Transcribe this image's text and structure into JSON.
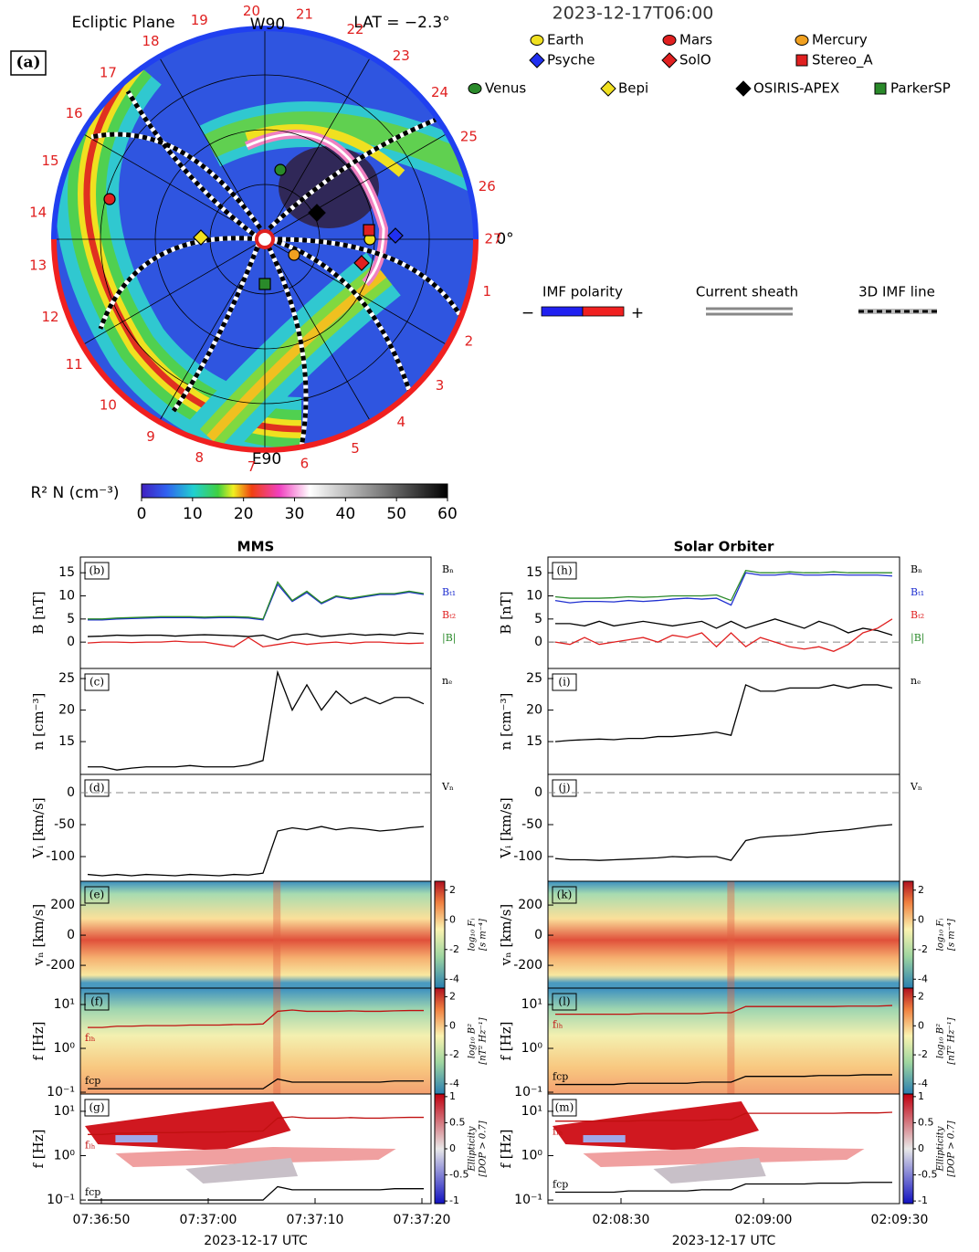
{
  "panel_a": {
    "label": "(a)",
    "title": "Ecliptic Plane",
    "lat": "LAT = −2.3°",
    "top": "W90",
    "bottom": "E90",
    "zero": "0°",
    "date": "2023-12-17T06:00",
    "sector_numbers": [
      "1",
      "2",
      "3",
      "4",
      "5",
      "6",
      "7",
      "8",
      "9",
      "10",
      "11",
      "12",
      "13",
      "14",
      "15",
      "16",
      "17",
      "18",
      "19",
      "20",
      "21",
      "22",
      "23",
      "24",
      "25",
      "26",
      "27"
    ],
    "legend": [
      "Earth",
      "Mars",
      "Mercury",
      "Psyche",
      "SolO",
      "Stereo_A",
      "Venus",
      "Bepi",
      "OSIRIS-APEX",
      "ParkerSP"
    ],
    "imf": {
      "polarity": "IMF polarity",
      "minus": "−",
      "plus": "+",
      "sheath": "Current sheath",
      "line": "3D IMF line"
    },
    "colorbar": {
      "label": "R² N (cm⁻³)",
      "clim": [
        0,
        60
      ],
      "ticks": [
        0,
        10,
        20,
        30,
        40,
        50,
        60
      ]
    }
  },
  "columns": [
    {
      "title": "MMS",
      "xlabel": "2023-12-17 UTC",
      "xticks": [
        "07:36:50",
        "07:37:00",
        "07:37:10",
        "07:37:20"
      ],
      "panels": [
        {
          "label": "(b)",
          "ylabel": "B [nT]",
          "ylim": [
            -5.7,
            18.4
          ],
          "yticks": [
            0,
            5,
            10,
            15
          ],
          "series": [
            {
              "name": "Bₙ",
              "color": "#000000",
              "values": [
                1.2,
                1.3,
                1.5,
                1.4,
                1.5,
                1.5,
                1.3,
                1.5,
                1.6,
                1.5,
                1.4,
                1.2,
                1.5,
                0.5,
                1.5,
                1.8,
                1.2,
                1.5,
                1.8,
                1.5,
                1.7,
                1.5,
                2,
                1.8
              ]
            },
            {
              "name": "Bₜ₁",
              "color": "#1f2fd0",
              "values": [
                4.8,
                4.8,
                5,
                5.1,
                5.2,
                5.3,
                5.3,
                5.3,
                5.2,
                5.3,
                5.3,
                5.2,
                4.8,
                12.5,
                8.8,
                10.7,
                8.3,
                9.8,
                9.3,
                9.8,
                10.3,
                10.3,
                10.8,
                10.3
              ]
            },
            {
              "name": "Bₜ₂",
              "color": "#e02020",
              "values": [
                -0.2,
                0,
                0,
                -0.1,
                0,
                0,
                0.2,
                0,
                0,
                -0.5,
                -1,
                1,
                -1,
                -0.5,
                0,
                -0.5,
                -0.2,
                0,
                -0.3,
                0,
                0,
                -0.2,
                -0.3,
                -0.2
              ]
            },
            {
              "name": "|B|",
              "color": "#2a8a2a",
              "values": [
                5,
                5,
                5.2,
                5.3,
                5.4,
                5.5,
                5.5,
                5.5,
                5.4,
                5.5,
                5.5,
                5.4,
                5,
                13,
                9,
                11,
                8.5,
                10,
                9.5,
                10,
                10.5,
                10.5,
                11,
                10.5
              ]
            }
          ]
        },
        {
          "label": "(c)",
          "ylabel": "n [cm⁻³]",
          "ylim": [
            9.8,
            26.6
          ],
          "yticks": [
            15,
            20,
            25
          ],
          "series": [
            {
              "name": "nₑ",
              "color": "#000000",
              "values": [
                11,
                11,
                10.5,
                10.8,
                11,
                11,
                11,
                11.2,
                11,
                11,
                11,
                11.3,
                12,
                26,
                20,
                24,
                20,
                23,
                21,
                22,
                21,
                22,
                22,
                21
              ]
            }
          ]
        },
        {
          "label": "(d)",
          "ylabel": "Vᵢ [km/s]",
          "ylim": [
            -138.6,
            28.6
          ],
          "yticks": [
            0,
            -50,
            -100
          ],
          "series": [
            {
              "name": "Vₙ",
              "color": "#000000",
              "values": [
                -128,
                -130,
                -128,
                -130,
                -128,
                -129,
                -130,
                -128,
                -129,
                -130,
                -128,
                -129,
                -126,
                -60,
                -55,
                -58,
                -53,
                -58,
                -55,
                -57,
                -60,
                -58,
                -55,
                -53
              ]
            }
          ]
        },
        {
          "label": "(e)",
          "ylabel": "vₙ [km/s]",
          "ylim": [
            -351,
            358
          ],
          "yticks": [
            200,
            0,
            -200
          ],
          "colorbar": {
            "label": "log₁₀ Fᵢ",
            "units": "[s m⁻⁴]",
            "clim": [
              -4.6,
              2.6
            ],
            "ticks": [
              2,
              0,
              -2,
              -4
            ]
          }
        },
        {
          "label": "(f)",
          "ylabel": "f [Hz]",
          "log": true,
          "ylim": [
            0.091,
            23.7
          ],
          "yticks": [
            {
              "value": 10,
              "label": "10¹"
            },
            {
              "value": 1,
              "label": "10⁰"
            },
            {
              "value": 0.1,
              "label": "10⁻¹"
            }
          ],
          "colorbar": {
            "label": "log₁₀ B²",
            "units": "[nT² Hz⁻¹]",
            "clim": [
              -4.7,
              2.6
            ],
            "ticks": [
              2,
              0,
              -2,
              -4
            ]
          },
          "series": [
            {
              "name": "fₗₕ",
              "color": "#c01010",
              "values": [
                3,
                3,
                3.2,
                3.2,
                3.3,
                3.3,
                3.3,
                3.4,
                3.4,
                3.4,
                3.5,
                3.5,
                3.6,
                7,
                7.5,
                7,
                7,
                7,
                7.2,
                7,
                7,
                7.2,
                7.3,
                7.3
              ]
            },
            {
              "name": "fcp",
              "color": "#000000",
              "values": [
                0.12,
                0.12,
                0.12,
                0.12,
                0.12,
                0.12,
                0.12,
                0.12,
                0.12,
                0.12,
                0.12,
                0.12,
                0.12,
                0.2,
                0.17,
                0.17,
                0.17,
                0.17,
                0.17,
                0.17,
                0.17,
                0.18,
                0.18,
                0.18
              ]
            }
          ]
        },
        {
          "label": "(g)",
          "ylabel": "f [Hz]",
          "log": true,
          "ylim": [
            0.083,
            24.5
          ],
          "yticks": [
            {
              "value": 10,
              "label": "10¹"
            },
            {
              "value": 1,
              "label": "10⁰"
            },
            {
              "value": 0.1,
              "label": "10⁻¹"
            }
          ],
          "colorbar": {
            "label": "Ellipticity",
            "units": "[DOP > 0.7]",
            "clim": [
              -1.05,
              1.05
            ],
            "ticks": [
              1,
              0.5,
              0,
              -0.5,
              -1
            ]
          },
          "series": [
            {
              "name": "fₗₕ",
              "color": "#c01010",
              "values": [
                3,
                3,
                3.2,
                3.2,
                3.3,
                3.3,
                3.3,
                3.4,
                3.4,
                3.4,
                3.5,
                3.5,
                3.6,
                7,
                7.5,
                7,
                7,
                7,
                7.2,
                7,
                7,
                7.2,
                7.3,
                7.3
              ]
            },
            {
              "name": "fcp",
              "color": "#000000",
              "values": [
                0.1,
                0.1,
                0.1,
                0.1,
                0.1,
                0.1,
                0.1,
                0.1,
                0.1,
                0.1,
                0.1,
                0.1,
                0.1,
                0.2,
                0.17,
                0.17,
                0.17,
                0.17,
                0.17,
                0.17,
                0.17,
                0.18,
                0.18,
                0.18
              ]
            }
          ]
        }
      ]
    },
    {
      "title": "Solar Orbiter",
      "xlabel": "2023-12-17 UTC",
      "xticks": [
        "02:08:30",
        "02:09:00",
        "02:09:30"
      ],
      "panels": [
        {
          "label": "(h)",
          "ylabel": "B [nT]",
          "ylim": [
            -5.7,
            18.4
          ],
          "yticks": [
            0,
            5,
            10,
            15
          ],
          "series": [
            {
              "name": "Bₙ",
              "color": "#000000",
              "values": [
                4,
                4,
                3.5,
                4.5,
                3.5,
                4,
                4.5,
                4,
                3.5,
                4,
                4.5,
                3,
                4.5,
                3,
                4,
                5,
                4,
                3,
                4.5,
                3.5,
                2,
                3,
                2.5,
                1.5
              ]
            },
            {
              "name": "Bₜ₁",
              "color": "#1f2fd0",
              "values": [
                9,
                8.5,
                8.8,
                8.8,
                8.7,
                9,
                8.8,
                9,
                9.3,
                9.5,
                9.3,
                9.5,
                8,
                15,
                14.5,
                14.5,
                14.8,
                14.5,
                14.5,
                14.6,
                14.5,
                14.5,
                14.5,
                14.3
              ]
            },
            {
              "name": "Bₜ₂",
              "color": "#e02020",
              "values": [
                0,
                -0.5,
                1,
                -0.5,
                0,
                0.5,
                1,
                0,
                1.5,
                1,
                2,
                -1,
                2,
                -1,
                1,
                0,
                -1,
                -1.5,
                -1,
                -2,
                -0.5,
                2,
                3,
                5
              ]
            },
            {
              "name": "|B|",
              "color": "#2a8a2a",
              "values": [
                9.8,
                9.5,
                9.5,
                9.5,
                9.6,
                9.8,
                9.7,
                9.8,
                10,
                10,
                10,
                10.2,
                9,
                15.5,
                15,
                15,
                15.2,
                15,
                15,
                15.2,
                15,
                15,
                15,
                15
              ]
            }
          ]
        },
        {
          "label": "(i)",
          "ylabel": "n [cm⁻³]",
          "ylim": [
            9.8,
            26.6
          ],
          "yticks": [
            15,
            20,
            25
          ],
          "series": [
            {
              "name": "nₑ",
              "color": "#000000",
              "values": [
                15,
                15.2,
                15.3,
                15.4,
                15.3,
                15.5,
                15.5,
                15.8,
                15.8,
                16,
                16.2,
                16.5,
                16,
                24,
                23,
                23,
                23.5,
                23.5,
                23.5,
                24,
                23.5,
                24,
                24,
                23.5
              ]
            }
          ]
        },
        {
          "label": "(j)",
          "ylabel": "Vᵢ [km/s]",
          "ylim": [
            -138.6,
            28.6
          ],
          "yticks": [
            0,
            -50,
            -100
          ],
          "series": [
            {
              "name": "Vₙ",
              "color": "#000000",
              "values": [
                -103,
                -105,
                -105,
                -106,
                -105,
                -104,
                -103,
                -102,
                -100,
                -101,
                -100,
                -100,
                -106,
                -75,
                -70,
                -68,
                -67,
                -65,
                -62,
                -60,
                -58,
                -55,
                -52,
                -50
              ]
            }
          ]
        },
        {
          "label": "(k)",
          "ylabel": "vₙ [km/s]",
          "ylim": [
            -351,
            358
          ],
          "yticks": [
            200,
            0,
            -200
          ],
          "colorbar": {
            "label": "log₁₀ Fᵢ",
            "units": "[s m⁻⁴]",
            "clim": [
              -4.6,
              2.6
            ],
            "ticks": [
              2,
              0,
              -2,
              -4
            ]
          }
        },
        {
          "label": "(l)",
          "ylabel": "f [Hz]",
          "log": true,
          "ylim": [
            0.091,
            23.7
          ],
          "yticks": [
            {
              "value": 10,
              "label": "10¹"
            },
            {
              "value": 1,
              "label": "10⁰"
            },
            {
              "value": 0.1,
              "label": "10⁻¹"
            }
          ],
          "colorbar": {
            "label": "log₁₀ B²",
            "units": "[nT² Hz⁻¹]",
            "clim": [
              -4.7,
              2.6
            ],
            "ticks": [
              2,
              0,
              -2,
              -4
            ]
          },
          "series": [
            {
              "name": "fₗₕ",
              "color": "#c01010",
              "values": [
                6,
                6,
                6,
                6,
                6,
                6,
                6.2,
                6.2,
                6.2,
                6.2,
                6.2,
                6.5,
                6.5,
                9,
                9,
                9,
                9,
                9,
                9,
                9,
                9.2,
                9.2,
                9.2,
                9.5
              ]
            },
            {
              "name": "fcp",
              "color": "#000000",
              "values": [
                0.15,
                0.15,
                0.15,
                0.15,
                0.15,
                0.16,
                0.16,
                0.16,
                0.16,
                0.16,
                0.17,
                0.17,
                0.17,
                0.23,
                0.23,
                0.23,
                0.23,
                0.23,
                0.24,
                0.24,
                0.24,
                0.25,
                0.25,
                0.25
              ]
            }
          ]
        },
        {
          "label": "(m)",
          "ylabel": "f [Hz]",
          "log": true,
          "ylim": [
            0.083,
            24.5
          ],
          "yticks": [
            {
              "value": 10,
              "label": "10¹"
            },
            {
              "value": 1,
              "label": "10⁰"
            },
            {
              "value": 0.1,
              "label": "10⁻¹"
            }
          ],
          "colorbar": {
            "label": "Ellipticity",
            "units": "[DOP > 0.7]",
            "clim": [
              -1.05,
              1.05
            ],
            "ticks": [
              1,
              0.5,
              0,
              -0.5,
              -1
            ]
          },
          "series": [
            {
              "name": "fₗₕ",
              "color": "#c01010",
              "values": [
                6,
                6,
                6,
                6,
                6,
                6,
                6.2,
                6.2,
                6.2,
                6.2,
                6.2,
                6.5,
                6.5,
                9,
                9,
                9,
                9,
                9,
                9,
                9,
                9.2,
                9.2,
                9.2,
                9.5
              ]
            },
            {
              "name": "fcp",
              "color": "#000000",
              "values": [
                0.15,
                0.15,
                0.15,
                0.15,
                0.15,
                0.16,
                0.16,
                0.16,
                0.16,
                0.16,
                0.17,
                0.17,
                0.17,
                0.23,
                0.23,
                0.23,
                0.23,
                0.23,
                0.24,
                0.24,
                0.24,
                0.25,
                0.25,
                0.25
              ]
            }
          ]
        }
      ]
    }
  ]
}
